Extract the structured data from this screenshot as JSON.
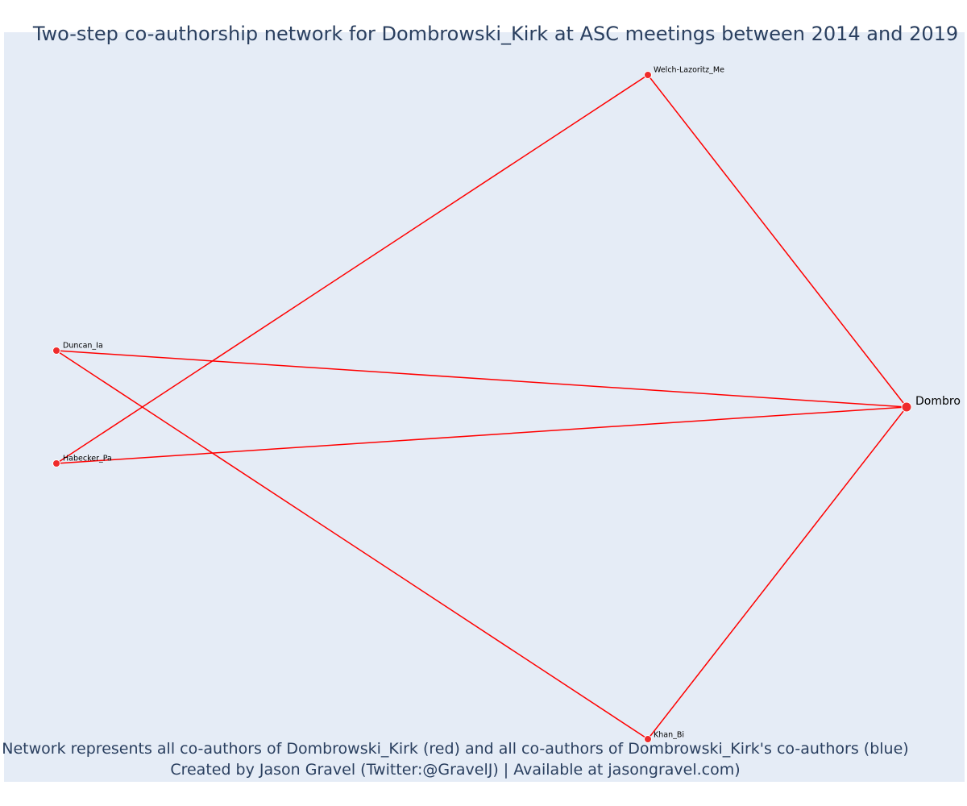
{
  "title": "Two-step co-authorship network for Dombrowski_Kirk at ASC meetings between 2014 and 2019",
  "caption": {
    "line1": "Network represents all co-authors of Dombrowski_Kirk (red) and all co-authors of Dombrowski_Kirk's co-authors (blue)",
    "line2": "Created by Jason Gravel (Twitter:@GravelJ) | Available at jasongravel.com)"
  },
  "colors": {
    "background": "#e5ecf6",
    "edge": "#ff0000",
    "coauthor_node": "#ef2b2b",
    "text": "#2a3f5f"
  },
  "network": {
    "focal": "Dombrowski_Kirk",
    "nodes": [
      {
        "id": "Dombrowski_Kirk",
        "label": "Dombro",
        "role": "focal"
      },
      {
        "id": "Welch-Lazoritz_Me",
        "label": "Welch-Lazoritz_Me",
        "role": "co-author"
      },
      {
        "id": "Duncan_Ia",
        "label": "Duncan_Ia",
        "role": "co-author"
      },
      {
        "id": "Habecker_Pa",
        "label": "Habecker_Pa",
        "role": "co-author"
      },
      {
        "id": "Khan_Bi",
        "label": "Khan_Bi",
        "role": "co-author"
      }
    ],
    "edges": [
      [
        "Dombrowski_Kirk",
        "Welch-Lazoritz_Me"
      ],
      [
        "Dombrowski_Kirk",
        "Duncan_Ia"
      ],
      [
        "Dombrowski_Kirk",
        "Habecker_Pa"
      ],
      [
        "Dombrowski_Kirk",
        "Khan_Bi"
      ],
      [
        "Welch-Lazoritz_Me",
        "Habecker_Pa"
      ],
      [
        "Duncan_Ia",
        "Khan_Bi"
      ]
    ]
  }
}
